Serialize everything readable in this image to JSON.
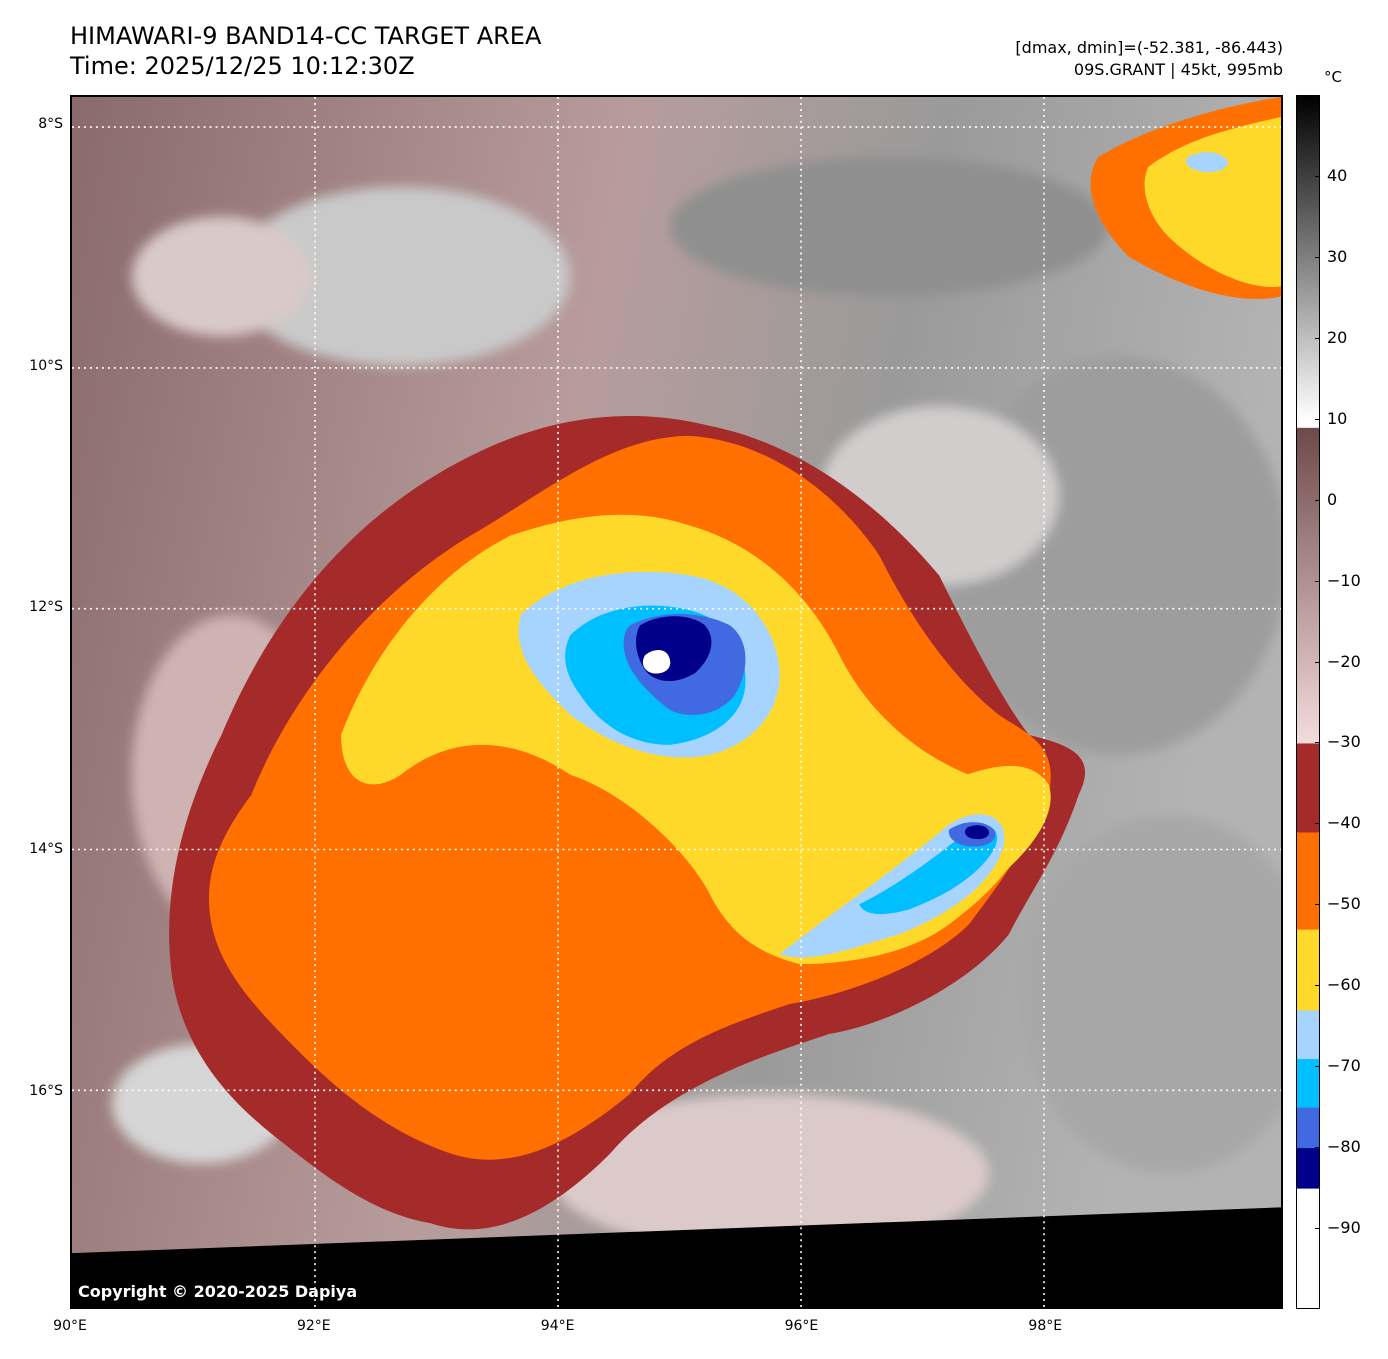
{
  "header": {
    "title_line1": "HIMAWARI-9 BAND14-CC TARGET AREA",
    "title_line2": "Time: 2025/12/25 10:12:30Z",
    "info_line1": "[dmax, dmin]=(-52.381, -86.443)",
    "info_line2": "09S.GRANT | 45kt, 995mb"
  },
  "map": {
    "copyright": "Copyright © 2020-2025 Dapiya",
    "lat_labels": [
      "8°S",
      "10°S",
      "12°S",
      "14°S",
      "16°S"
    ],
    "lon_labels": [
      "90°E",
      "92°E",
      "94°E",
      "96°E",
      "98°E"
    ],
    "lat_extent": [
      -7.75,
      -17.8
    ],
    "lon_extent": [
      90.0,
      99.95
    ],
    "grid_lat": [
      -8,
      -10,
      -12,
      -14,
      -16
    ],
    "grid_lon": [
      92,
      94,
      96,
      98
    ],
    "storm_center": {
      "lat": -12.4,
      "lon": 94.9
    },
    "secondary_core": {
      "lat": -13.85,
      "lon": 97.55
    }
  },
  "colorbar": {
    "unit": "°C",
    "ticks": [
      "40",
      "30",
      "20",
      "10",
      "0",
      "−10",
      "−20",
      "−30",
      "−40",
      "−50",
      "−60",
      "−70",
      "−80",
      "−90"
    ],
    "tick_values": [
      40,
      30,
      20,
      10,
      0,
      -10,
      -20,
      -30,
      -40,
      -50,
      -60,
      -70,
      -80,
      -90
    ],
    "range": [
      -100,
      50
    ],
    "bands": [
      {
        "from": 50,
        "to": 10,
        "color": "gradient-gray-black"
      },
      {
        "from": 9,
        "to": -30,
        "color": "gradient-brown-pink"
      },
      {
        "from": -30,
        "to": -41,
        "color": "#a52a2a"
      },
      {
        "from": -41,
        "to": -53,
        "color": "#ff7000"
      },
      {
        "from": -53,
        "to": -63,
        "color": "#ffd92a"
      },
      {
        "from": -63,
        "to": -69,
        "color": "#a7d3ff"
      },
      {
        "from": -69,
        "to": -75,
        "color": "#00bfff"
      },
      {
        "from": -75,
        "to": -80,
        "color": "#4169e1"
      },
      {
        "from": -80,
        "to": -85,
        "color": "#00008b"
      },
      {
        "from": -85,
        "to": -100,
        "color": "#ffffff"
      }
    ]
  }
}
